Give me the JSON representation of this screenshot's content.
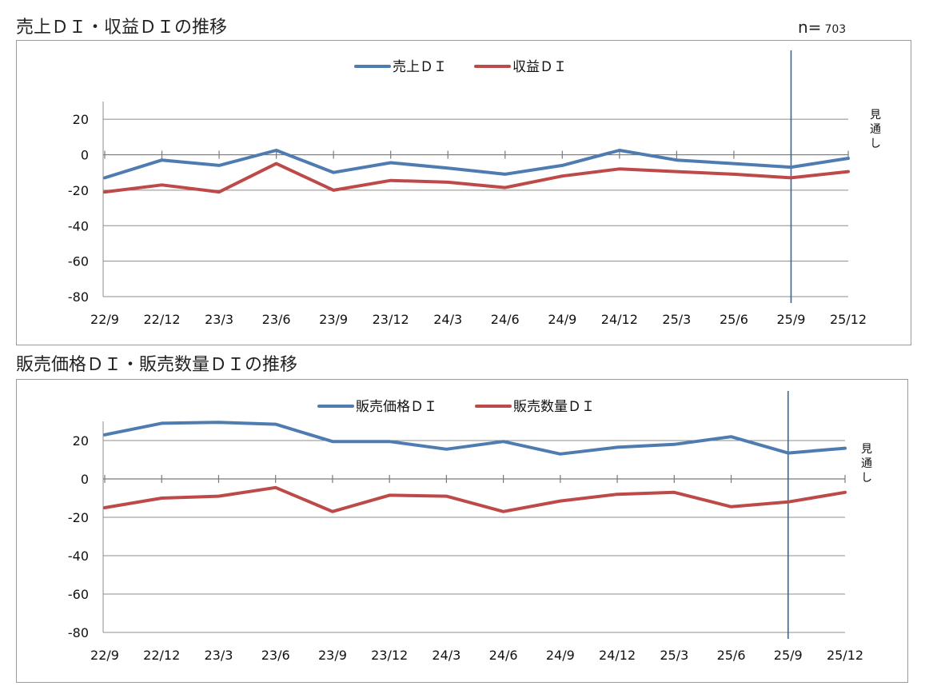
{
  "page": {
    "n_label": "n=",
    "n_value": "703"
  },
  "chart_data": [
    {
      "type": "line",
      "title": "売上ＤＩ・収益ＤＩの推移",
      "categories": [
        "22/9",
        "22/12",
        "23/3",
        "23/6",
        "23/9",
        "23/12",
        "24/3",
        "24/6",
        "24/9",
        "24/12",
        "25/3",
        "25/6",
        "25/9",
        "25/12"
      ],
      "series": [
        {
          "name": "売上ＤＩ",
          "color": "#4f7cb0",
          "values": [
            -13,
            -3,
            -6,
            2.5,
            -10,
            -4.5,
            -7.5,
            -11,
            -6,
            2.5,
            -3,
            -5,
            -7,
            -2
          ]
        },
        {
          "name": "収益ＤＩ",
          "color": "#bd4a48",
          "values": [
            -21,
            -17,
            -21,
            -5,
            -20,
            -14.5,
            -15.5,
            -18.5,
            -12,
            -8,
            -9.5,
            -11,
            -13,
            -9.5
          ]
        }
      ],
      "yticks": [
        20,
        0,
        -20,
        -40,
        -60,
        -80
      ],
      "ylim": [
        -80,
        30
      ],
      "divider_category": "25/9",
      "divider_color": "#2e6a9c",
      "forecast_note": [
        "見",
        "通",
        "し"
      ]
    },
    {
      "type": "line",
      "title": "販売価格ＤＩ・販売数量ＤＩの推移",
      "categories": [
        "22/9",
        "22/12",
        "23/3",
        "23/6",
        "23/9",
        "23/12",
        "24/3",
        "24/6",
        "24/9",
        "24/12",
        "25/3",
        "25/6",
        "25/9",
        "25/12"
      ],
      "series": [
        {
          "name": "販売価格ＤＩ",
          "color": "#4f7cb0",
          "values": [
            23,
            29,
            29.5,
            28.5,
            19.5,
            19.5,
            15.5,
            19.5,
            13,
            16.5,
            18,
            22,
            13.5,
            16
          ]
        },
        {
          "name": "販売数量ＤＩ",
          "color": "#bd4a48",
          "values": [
            -15,
            -10,
            -9,
            -4.5,
            -17,
            -8.5,
            -9,
            -17,
            -11.5,
            -8,
            -7,
            -14.5,
            -12,
            -7
          ]
        }
      ],
      "yticks": [
        20,
        0,
        -20,
        -40,
        -60,
        -80
      ],
      "ylim": [
        -80,
        30
      ],
      "divider_category": "25/9",
      "divider_color": "#2e6a9c",
      "forecast_note": [
        "見",
        "通",
        "し"
      ]
    }
  ]
}
